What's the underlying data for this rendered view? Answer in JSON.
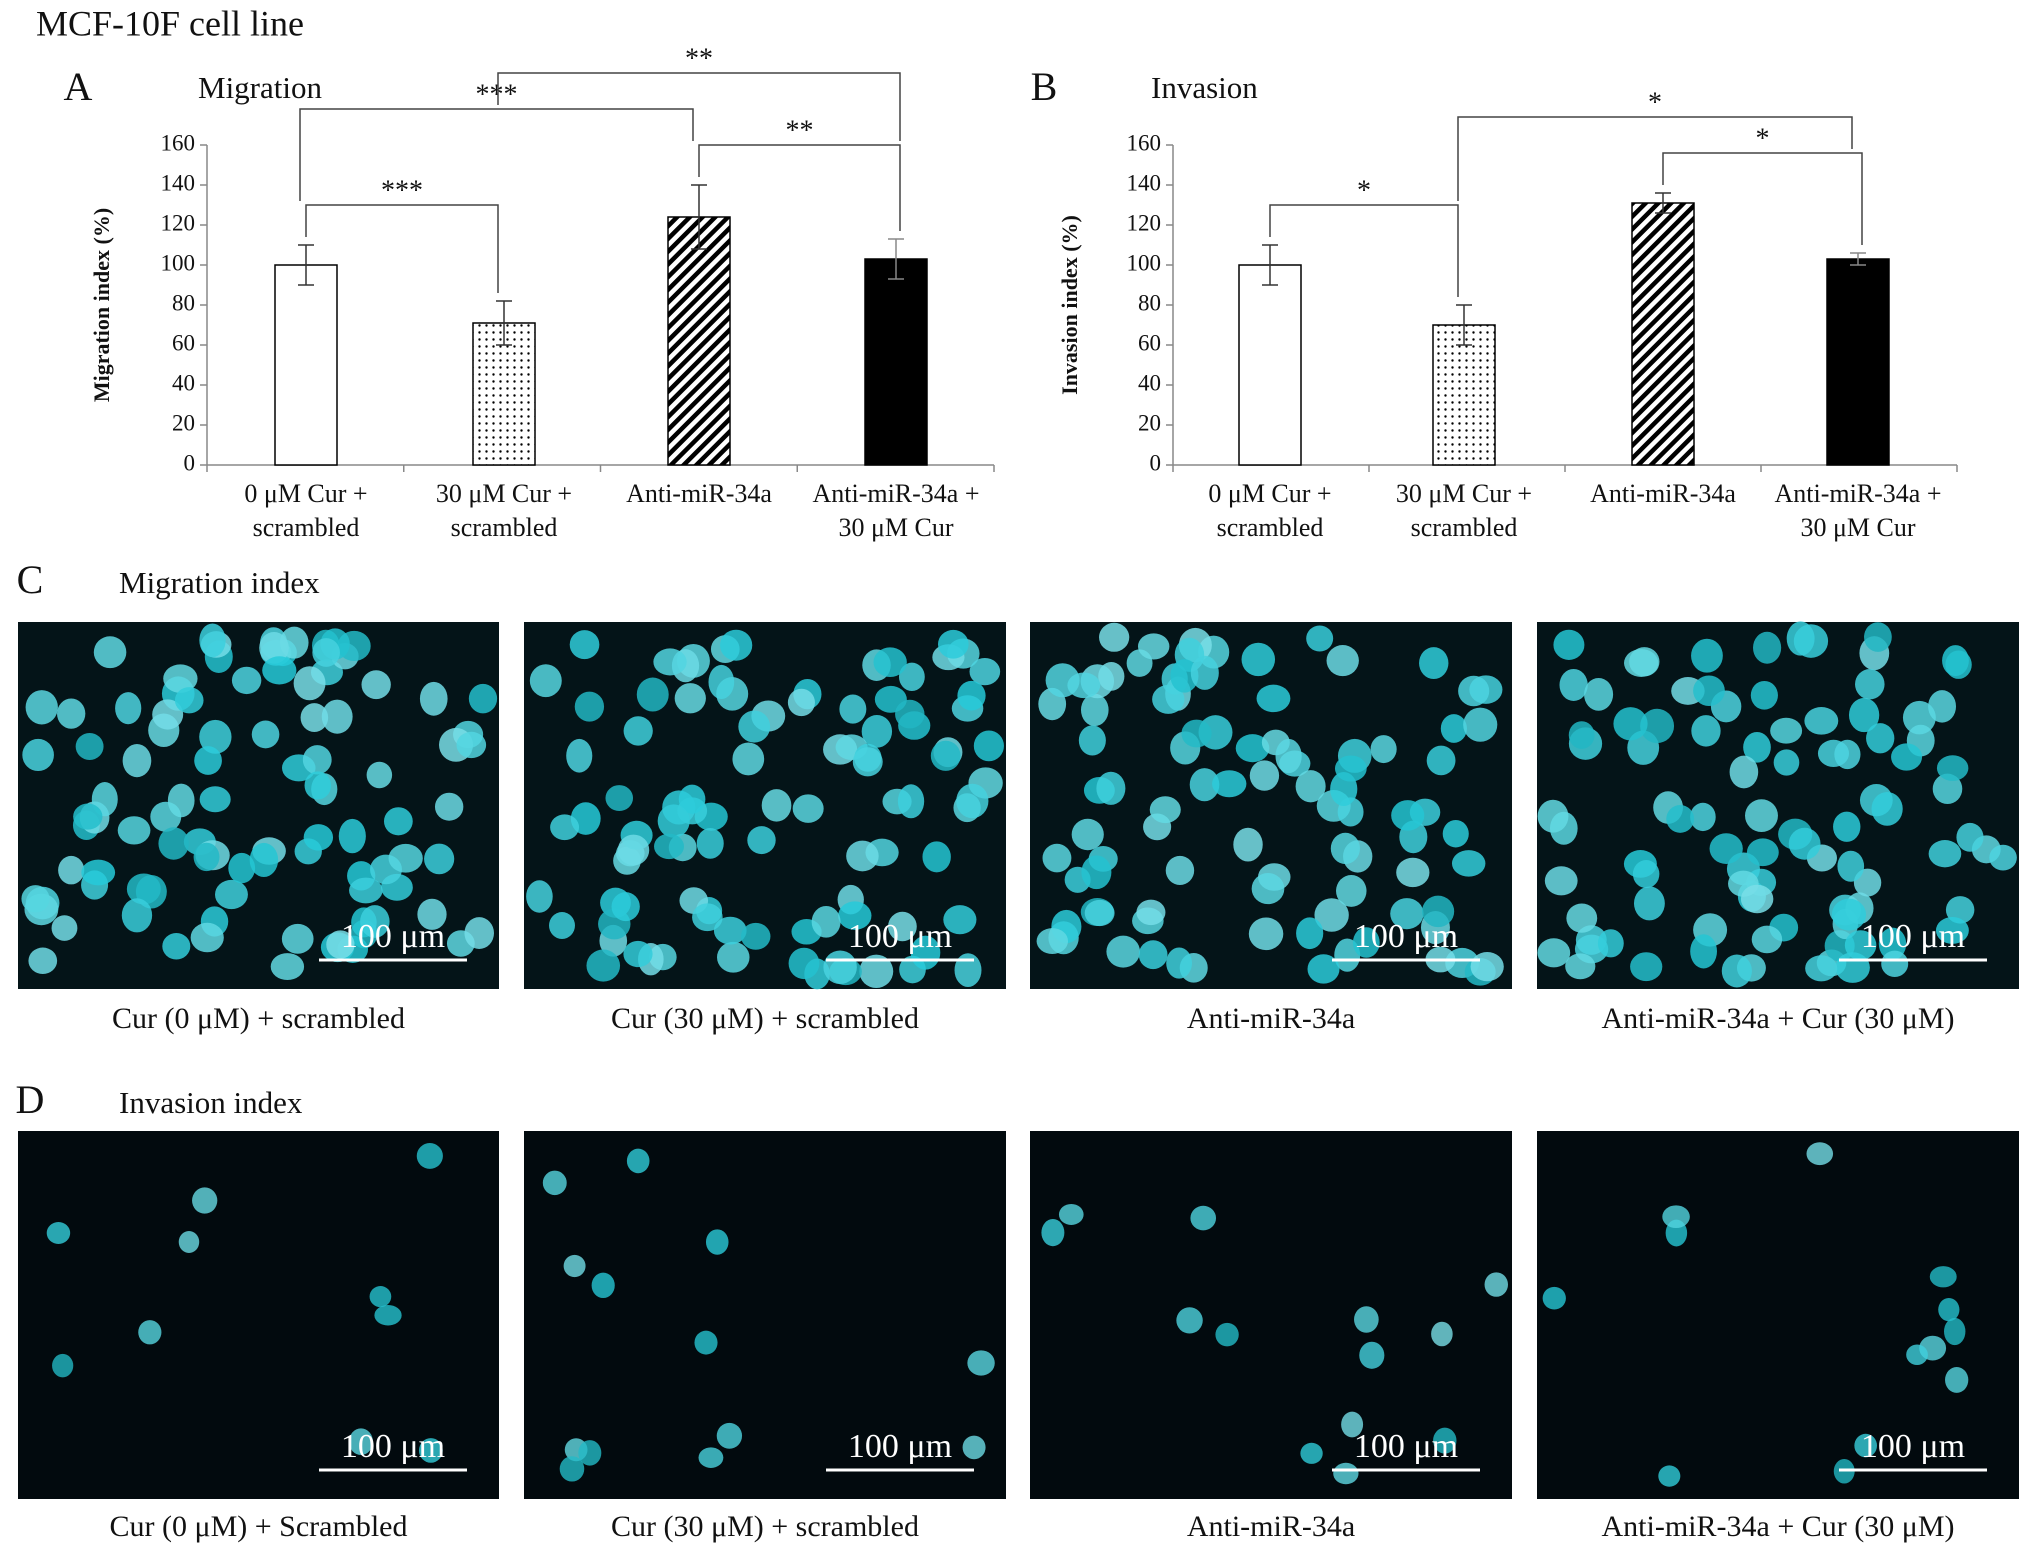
{
  "figure_title": "MCF-10F cell line",
  "chart_data": [
    {
      "type": "bar",
      "panel": "A",
      "title": "Migration",
      "y_label": "Migration index (%)",
      "categories": [
        [
          "0 μM Cur +",
          "scrambled"
        ],
        [
          "30 μM Cur +",
          "scrambled"
        ],
        [
          "Anti-miR-34a"
        ],
        [
          "Anti-miR-34a +",
          "30 μM Cur"
        ]
      ],
      "values": [
        100,
        71,
        124,
        103
      ],
      "errors": [
        10,
        11,
        16,
        10
      ],
      "fills": [
        "white",
        "dots",
        "hatch",
        "black"
      ],
      "ylim": [
        0,
        160
      ],
      "yticks": [
        0,
        20,
        40,
        60,
        80,
        100,
        120,
        140,
        160
      ],
      "brackets": [
        {
          "from": 0,
          "to": 1,
          "label": "***"
        },
        {
          "from": 2,
          "to": 3,
          "label": "**"
        },
        {
          "from": 0,
          "to": 2,
          "label": "***"
        },
        {
          "from": 1,
          "to": 3,
          "label": "**"
        }
      ]
    },
    {
      "type": "bar",
      "panel": "B",
      "title": "Invasion",
      "y_label": "Invasion index (%)",
      "categories": [
        [
          "0 μM Cur +",
          "scrambled"
        ],
        [
          "30 μM Cur +",
          "scrambled"
        ],
        [
          "Anti-miR-34a"
        ],
        [
          "Anti-miR-34a +",
          "30 μM Cur"
        ]
      ],
      "values": [
        100,
        70,
        131,
        103
      ],
      "errors": [
        10,
        10,
        5,
        3
      ],
      "fills": [
        "white",
        "dots",
        "hatch",
        "black"
      ],
      "ylim": [
        0,
        160
      ],
      "yticks": [
        0,
        20,
        40,
        60,
        80,
        100,
        120,
        140,
        160
      ],
      "brackets": [
        {
          "from": 0,
          "to": 1,
          "label": "*"
        },
        {
          "from": 2,
          "to": 3,
          "label": "*"
        },
        {
          "from": 1,
          "to": 3,
          "label": "*"
        }
      ]
    }
  ],
  "panels": [
    {
      "letter": "C",
      "title": "Migration index",
      "captions": [
        "Cur (0 μM) + scrambled",
        "Cur (30 μM) + scrambled",
        "Anti-miR-34a",
        "Anti-miR-34a + Cur (30 μM)"
      ]
    },
    {
      "letter": "D",
      "title": "Invasion index",
      "captions": [
        "Cur (0 μM) + Scrambled",
        "Cur (30 μM) + scrambled",
        "Anti-miR-34a",
        "Anti-miR-34a + Cur (30 μM)"
      ]
    }
  ],
  "scale_bar": "100 μm"
}
